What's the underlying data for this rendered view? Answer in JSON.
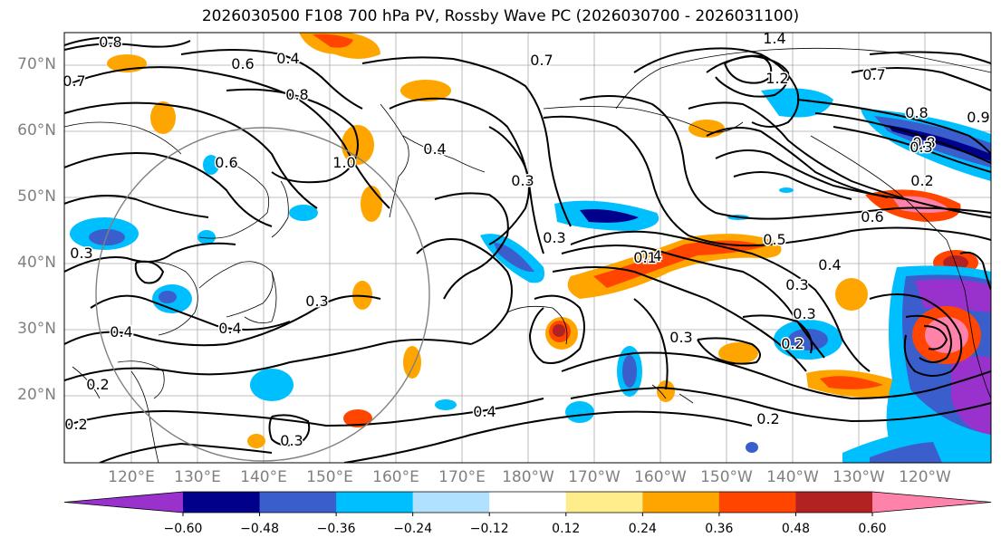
{
  "title": "2026030500 F108 700 hPa PV, Rossby Wave PC (2026030700 - 2026031100)",
  "map": {
    "lat_labels": [
      "70°N",
      "60°N",
      "50°N",
      "40°N",
      "30°N",
      "20°N"
    ],
    "lon_labels": [
      "120°E",
      "130°E",
      "140°E",
      "150°E",
      "160°E",
      "170°E",
      "180°W",
      "170°W",
      "160°W",
      "150°W",
      "140°W",
      "130°W",
      "120°W"
    ],
    "contour_labels": [
      "0.8",
      "0.6",
      "0.4",
      "0.8",
      "0.7",
      "0.7",
      "1.4",
      "1.2",
      "0.7",
      "0.8",
      "0.9",
      "0.8",
      "0.3",
      "0.2",
      "0.6",
      "0.5",
      "0.4",
      "0.3",
      "0.3",
      "0.2",
      "0.3",
      "0.4",
      "0.2",
      "0.4",
      "0.3",
      "0.4",
      "1.0",
      "0.4",
      "0.3",
      "0.3",
      "0.4",
      "0.3",
      "0.2",
      "0.2",
      "0.3",
      "0.6",
      "0.1"
    ]
  },
  "colorbar": {
    "ticks": [
      "−0.60",
      "−0.48",
      "−0.36",
      "−0.24",
      "−0.12",
      "0.12",
      "0.24",
      "0.36",
      "0.48",
      "0.60"
    ],
    "colors": [
      "#9932cc",
      "#00008b",
      "#3a5fcd",
      "#00bfff",
      "#b0e2ff",
      "#ffffff",
      "#ffec8b",
      "#ffa500",
      "#ff4500",
      "#b22222",
      "#ff82ab"
    ]
  }
}
